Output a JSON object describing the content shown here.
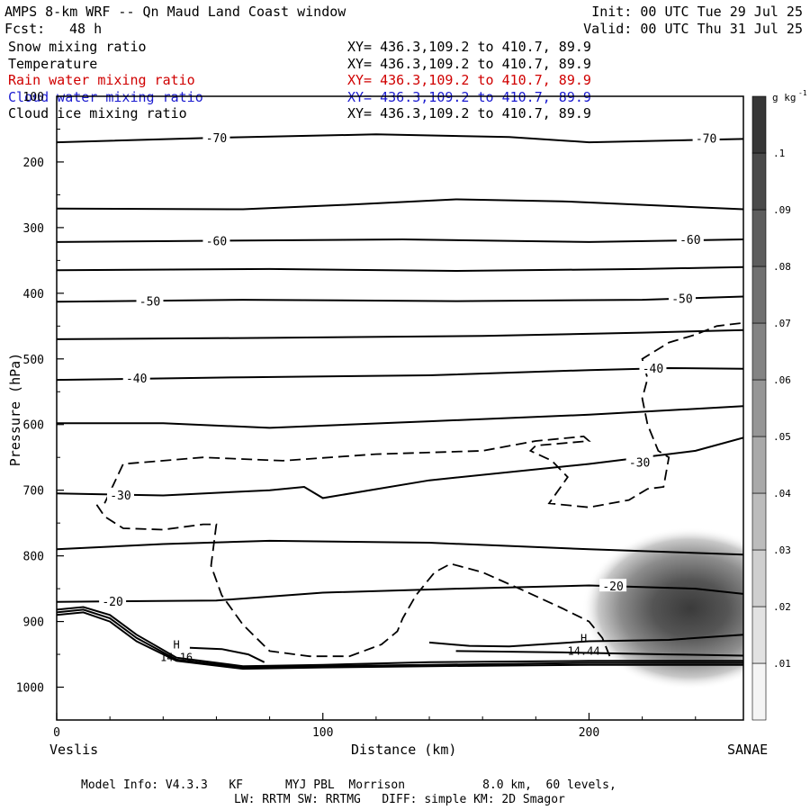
{
  "header": {
    "title": "AMPS 8-km WRF -- Qn Maud Land Coast window",
    "init": "Init: 00 UTC Tue 29 Jul 25",
    "fcst_label": "Fcst:",
    "fcst_value": "48 h",
    "valid": "Valid: 00 UTC Thu 31 Jul 25"
  },
  "fields": [
    {
      "name": "Snow mixing ratio",
      "xy": "XY= 436.3,109.2 to 410.7, 89.9",
      "color": "#000000"
    },
    {
      "name": "Temperature",
      "xy": "XY= 436.3,109.2 to 410.7, 89.9",
      "color": "#000000"
    },
    {
      "name": "Rain water mixing ratio",
      "xy": "XY= 436.3,109.2 to 410.7, 89.9",
      "color": "#d00000"
    },
    {
      "name": "Cloud water mixing ratio",
      "xy": "XY= 436.3,109.2 to 410.7, 89.9",
      "color": "#1a1ad0"
    },
    {
      "name": "Cloud ice mixing ratio",
      "xy": "XY= 436.3,109.2 to 410.7, 89.9",
      "color": "#000000"
    }
  ],
  "chart_data": {
    "type": "line",
    "xlabel": "Distance (km)",
    "ylabel": "Pressure (hPa)",
    "xlim": [
      0,
      258
    ],
    "ylim": [
      1050,
      100
    ],
    "x_ticks": [
      0,
      100,
      200
    ],
    "y_ticks": [
      100,
      200,
      300,
      400,
      500,
      600,
      700,
      800,
      900,
      1000
    ],
    "left_endpoint": "Veslis",
    "right_endpoint": "SANAE",
    "colorbar": {
      "unit_base": "g kg",
      "unit_exp": "-1",
      "ticks": [
        ".01",
        ".02",
        ".03",
        ".04",
        ".05",
        ".06",
        ".07",
        ".08",
        ".09",
        ".1"
      ],
      "range": [
        0,
        0.11
      ]
    },
    "temperature_contours": [
      {
        "label": "-70",
        "points": [
          [
            0,
            170
          ],
          [
            60,
            163
          ],
          [
            120,
            158
          ],
          [
            170,
            162
          ],
          [
            200,
            170
          ],
          [
            258,
            165
          ]
        ]
      },
      {
        "label": "",
        "points": [
          [
            0,
            271
          ],
          [
            70,
            272
          ],
          [
            110,
            265
          ],
          [
            150,
            257
          ],
          [
            190,
            260
          ],
          [
            258,
            272
          ]
        ]
      },
      {
        "label": "-60",
        "points": [
          [
            0,
            322
          ],
          [
            60,
            320
          ],
          [
            130,
            318
          ],
          [
            200,
            322
          ],
          [
            258,
            318
          ]
        ]
      },
      {
        "label": "",
        "points": [
          [
            0,
            365
          ],
          [
            80,
            363
          ],
          [
            150,
            366
          ],
          [
            220,
            363
          ],
          [
            258,
            360
          ]
        ]
      },
      {
        "label": "-50",
        "points": [
          [
            0,
            413
          ],
          [
            70,
            410
          ],
          [
            150,
            412
          ],
          [
            220,
            410
          ],
          [
            258,
            405
          ]
        ]
      },
      {
        "label": "",
        "points": [
          [
            0,
            470
          ],
          [
            80,
            468
          ],
          [
            160,
            465
          ],
          [
            220,
            460
          ],
          [
            258,
            456
          ]
        ]
      },
      {
        "label": "-40",
        "points": [
          [
            0,
            532
          ],
          [
            70,
            528
          ],
          [
            140,
            525
          ],
          [
            200,
            517
          ],
          [
            230,
            514
          ],
          [
            258,
            515
          ]
        ]
      },
      {
        "label": "",
        "points": [
          [
            0,
            598
          ],
          [
            40,
            598
          ],
          [
            80,
            605
          ],
          [
            140,
            595
          ],
          [
            200,
            585
          ],
          [
            258,
            572
          ]
        ]
      },
      {
        "label": "-30",
        "points": [
          [
            0,
            705
          ],
          [
            40,
            708
          ],
          [
            80,
            700
          ],
          [
            93,
            695
          ],
          [
            100,
            712
          ],
          [
            140,
            685
          ],
          [
            200,
            660
          ],
          [
            240,
            640
          ],
          [
            258,
            620
          ]
        ]
      },
      {
        "label": "",
        "points": [
          [
            0,
            790
          ],
          [
            40,
            782
          ],
          [
            80,
            777
          ],
          [
            140,
            780
          ],
          [
            200,
            790
          ],
          [
            258,
            798
          ]
        ]
      },
      {
        "label": "-20",
        "points": [
          [
            0,
            870
          ],
          [
            60,
            868
          ],
          [
            100,
            856
          ],
          [
            150,
            850
          ],
          [
            200,
            845
          ],
          [
            240,
            850
          ],
          [
            258,
            858
          ]
        ]
      }
    ],
    "labels": [
      {
        "text": "-70",
        "x": 60,
        "p": 163
      },
      {
        "text": "-70",
        "x": 244,
        "p": 164
      },
      {
        "text": "-60",
        "x": 60,
        "p": 320
      },
      {
        "text": "-60",
        "x": 238,
        "p": 318
      },
      {
        "text": "-50",
        "x": 35,
        "p": 412
      },
      {
        "text": "-50",
        "x": 235,
        "p": 408
      },
      {
        "text": "-40",
        "x": 30,
        "p": 529
      },
      {
        "text": "-40",
        "x": 224,
        "p": 514
      },
      {
        "text": "-30",
        "x": 24,
        "p": 707
      },
      {
        "text": "-30",
        "x": 219,
        "p": 657
      },
      {
        "text": "-20",
        "x": 21,
        "p": 869
      },
      {
        "text": "-20",
        "x": 209,
        "p": 846
      }
    ],
    "highs": [
      {
        "label": "H",
        "value": "14.16",
        "x": 45,
        "p": 955
      },
      {
        "label": "H",
        "value": "14.44",
        "x": 198,
        "p": 945
      }
    ],
    "snow_max": {
      "x": 238,
      "p": 880,
      "value": 0.1
    }
  },
  "footer": {
    "line1": "Model Info: V4.3.3   KF      MYJ PBL  Morrison           8.0 km,  60 levels,",
    "line2": "LW: RRTM SW: RRTMG   DIFF: simple KM: 2D Smagor"
  }
}
